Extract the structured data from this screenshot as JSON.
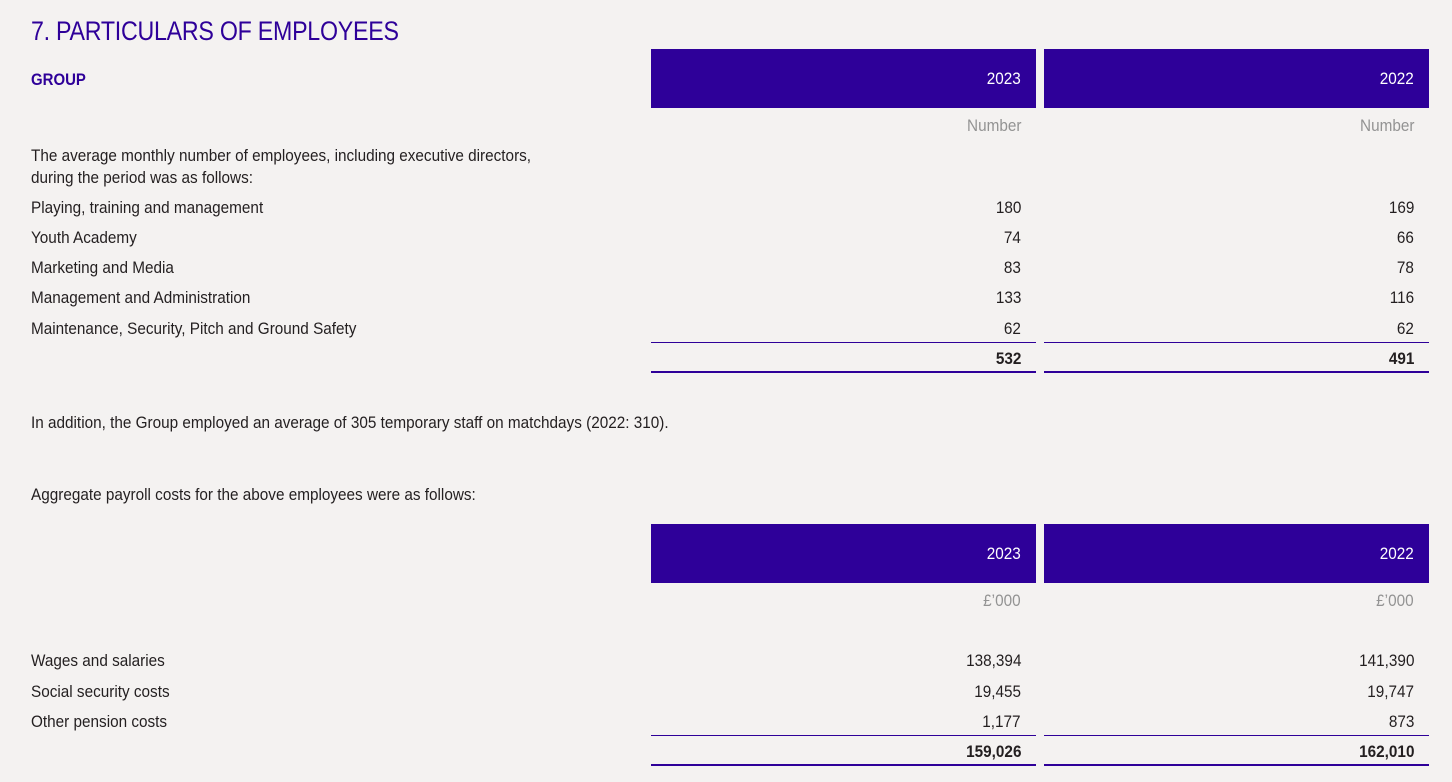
{
  "title": "7. PARTICULARS OF EMPLOYEES",
  "section_label": "GROUP",
  "colors": {
    "accent": "#2e0099",
    "background": "#f4f2f1",
    "unit_text": "#939393"
  },
  "employees_table": {
    "columns": [
      {
        "year": "2023",
        "unit": "Number"
      },
      {
        "year": "2022",
        "unit": "Number"
      }
    ],
    "intro_line1": "The average monthly number of employees, including executive directors,",
    "intro_line2": "during the period was as follows:",
    "rows": [
      {
        "label": "Playing, training and management",
        "values": [
          "180",
          "169"
        ]
      },
      {
        "label": "Youth Academy",
        "values": [
          "74",
          "66"
        ]
      },
      {
        "label": "Marketing and Media",
        "values": [
          "83",
          "78"
        ]
      },
      {
        "label": "Management and Administration",
        "values": [
          "133",
          "116"
        ]
      },
      {
        "label": "Maintenance, Security, Pitch and Ground Safety",
        "values": [
          "62",
          "62"
        ]
      }
    ],
    "totals": [
      "532",
      "491"
    ]
  },
  "temporary_staff_note": "In addition, the Group employed an average of 305 temporary staff on matchdays (2022: 310).",
  "payroll_intro": "Aggregate payroll costs for the above employees were as follows:",
  "payroll_table": {
    "columns": [
      {
        "year": "2023",
        "unit": "£’000"
      },
      {
        "year": "2022",
        "unit": "£’000"
      }
    ],
    "rows": [
      {
        "label": "Wages and salaries",
        "values": [
          "138,394",
          "141,390"
        ]
      },
      {
        "label": "Social security costs",
        "values": [
          "19,455",
          "19,747"
        ]
      },
      {
        "label": "Other pension costs",
        "values": [
          "1,177",
          "873"
        ]
      }
    ],
    "totals": [
      "159,026",
      "162,010"
    ]
  }
}
